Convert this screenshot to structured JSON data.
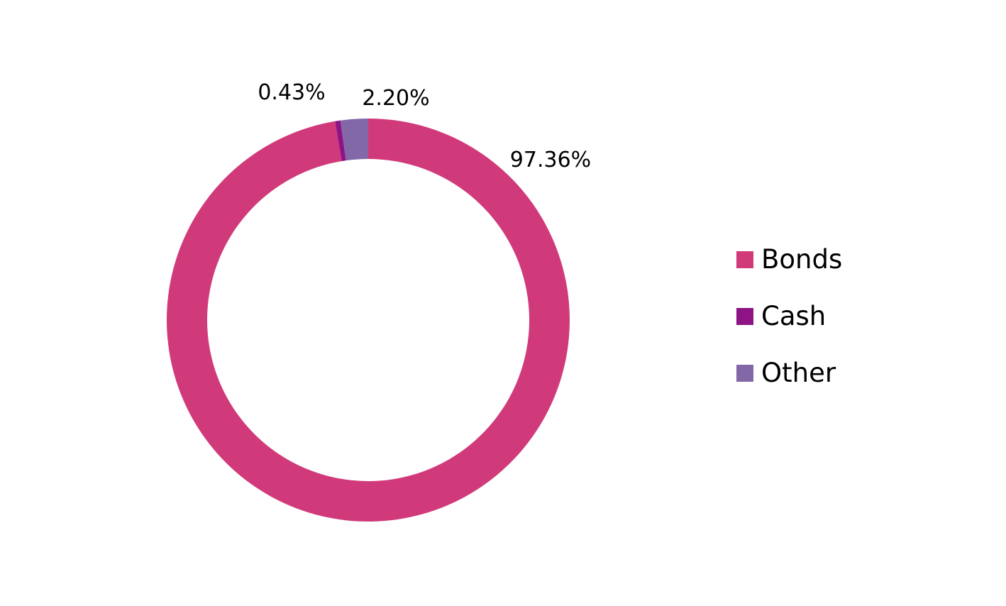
{
  "chart_data": {
    "type": "pie",
    "variant": "donut",
    "categories": [
      "Bonds",
      "Cash",
      "Other"
    ],
    "values": [
      97.36,
      0.43,
      2.2
    ],
    "labels": [
      "97.36%",
      "0.43%",
      "2.20%"
    ],
    "colors": [
      "#D13A7A",
      "#8E1486",
      "#8368A8"
    ],
    "legend_position": "right",
    "title": ""
  }
}
